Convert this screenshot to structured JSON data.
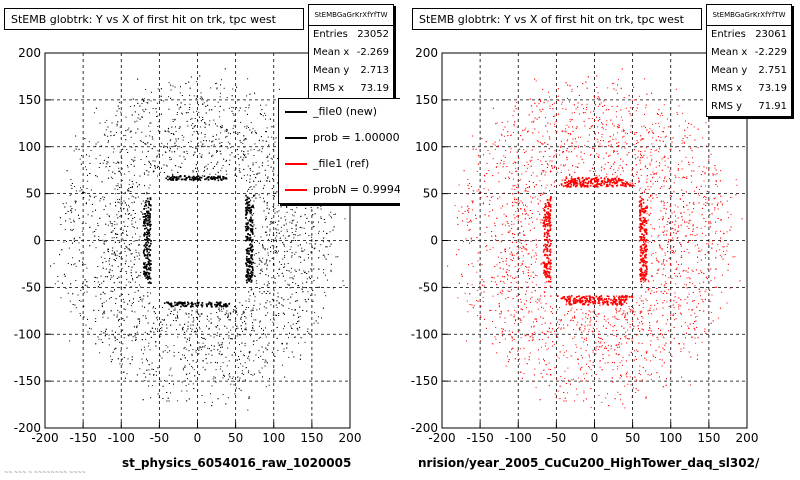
{
  "left": {
    "title": "StEMB globtrk: Y vs X of first hit on trk, tpc west",
    "stats": {
      "header": "StEMBGaGrKrXfYfTW",
      "rows": [
        {
          "label": "Entries",
          "value": "23052"
        },
        {
          "label": "Mean x",
          "value": "-2.269"
        },
        {
          "label": "Mean y",
          "value": "2.713"
        },
        {
          "label": "RMS x",
          "value": "73.19"
        }
      ]
    },
    "legend": [
      {
        "label": "_file0 (new)",
        "color": "#000000"
      },
      {
        "label": "prob = 1.000000",
        "color": "#000000"
      },
      {
        "label": "_file1 (ref)",
        "color": "#ff0000"
      },
      {
        "label": "probN = 0.99943",
        "color": "#ff0000"
      }
    ],
    "filename": "st_physics_6054016_raw_1020005",
    "footer": "~~ ~~~ ~ ~~~~~~~~ ~~~~"
  },
  "right": {
    "title": "StEMB globtrk: Y vs X of first hit on trk, tpc west",
    "stats": {
      "header": "StEMBGaGrKrXfYfTW",
      "rows": [
        {
          "label": "Entries",
          "value": "23061"
        },
        {
          "label": "Mean x",
          "value": "-2.229"
        },
        {
          "label": "Mean y",
          "value": "2.751"
        },
        {
          "label": "RMS x",
          "value": "73.19"
        },
        {
          "label": "RMS y",
          "value": "71.91"
        }
      ]
    },
    "filename": "nrision/year_2005_CuCu200_HighTower_daq_sl302/"
  },
  "chart_data": [
    {
      "type": "scatter",
      "title": "StEMB globtrk: Y vs X of first hit on trk, tpc west",
      "color": "#000000",
      "xlim": [
        -200,
        200
      ],
      "ylim": [
        -200,
        200
      ],
      "xticks": [
        -200,
        -150,
        -100,
        -50,
        0,
        50,
        100,
        150,
        200
      ],
      "yticks": [
        -200,
        -150,
        -100,
        -50,
        0,
        50,
        100,
        150,
        200
      ],
      "grid": true,
      "entries": 23052,
      "mean_x": -2.269,
      "mean_y": 2.713,
      "rms_x": 73.19,
      "structure": {
        "empty_region": {
          "center": [
            0,
            0
          ],
          "half_width_x": 62,
          "y_range": [
            -65,
            65
          ]
        },
        "dense_ring": {
          "radius_x": [
            62,
            72
          ],
          "radius_y": [
            60,
            70
          ]
        },
        "outer_bands_radius": [
          90,
          120,
          155
        ]
      },
      "legend_position": "top-right"
    },
    {
      "type": "scatter",
      "title": "StEMB globtrk: Y vs X of first hit on trk, tpc west",
      "color": "#ff0000",
      "xlim": [
        -200,
        200
      ],
      "ylim": [
        -200,
        200
      ],
      "xticks": [
        -200,
        -150,
        -100,
        -50,
        0,
        50,
        100,
        150,
        200
      ],
      "yticks": [
        -200,
        -150,
        -100,
        -50,
        0,
        50,
        100,
        150,
        200
      ],
      "grid": true,
      "entries": 23061,
      "mean_x": -2.229,
      "mean_y": 2.751,
      "rms_x": 73.19,
      "rms_y": 71.91,
      "structure": {
        "empty_region": {
          "center": [
            0,
            0
          ],
          "half_width_x": 58,
          "y_range": [
            -58,
            58
          ]
        },
        "dense_ring": {
          "radius_x": [
            58,
            68
          ],
          "radius_y": [
            58,
            68
          ]
        },
        "outer_bands_radius": [
          90,
          120,
          155
        ]
      }
    }
  ]
}
